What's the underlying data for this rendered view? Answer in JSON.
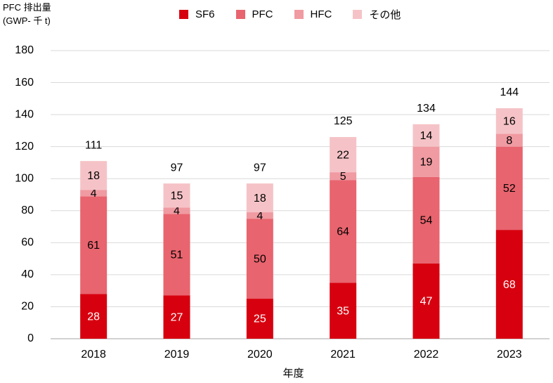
{
  "chart_data": {
    "type": "bar",
    "stacked": true,
    "ylabel_line1": "PFC 排出量",
    "ylabel_line2": "(GWP- 千 t)",
    "xlabel": "年度",
    "categories": [
      "2018",
      "2019",
      "2020",
      "2021",
      "2022",
      "2023"
    ],
    "ylim": [
      0,
      180
    ],
    "yticks": [
      0,
      20,
      40,
      60,
      80,
      100,
      120,
      140,
      160,
      180
    ],
    "grid": true,
    "legend_position": "top",
    "series": [
      {
        "name": "SF6",
        "color": "#d7000f",
        "values": [
          28,
          27,
          25,
          35,
          47,
          68
        ],
        "label_color": "#ffffff"
      },
      {
        "name": "PFC",
        "color": "#e8646e",
        "values": [
          61,
          51,
          50,
          64,
          54,
          52
        ],
        "label_color": "#000000"
      },
      {
        "name": "HFC",
        "color": "#f09aa1",
        "values": [
          4,
          4,
          4,
          5,
          19,
          8
        ],
        "label_color": "#000000"
      },
      {
        "name": "その他",
        "color": "#f5c3c7",
        "values": [
          18,
          15,
          18,
          22,
          14,
          16
        ],
        "label_color": "#000000"
      }
    ],
    "totals": [
      111,
      97,
      97,
      125,
      134,
      144
    ]
  }
}
